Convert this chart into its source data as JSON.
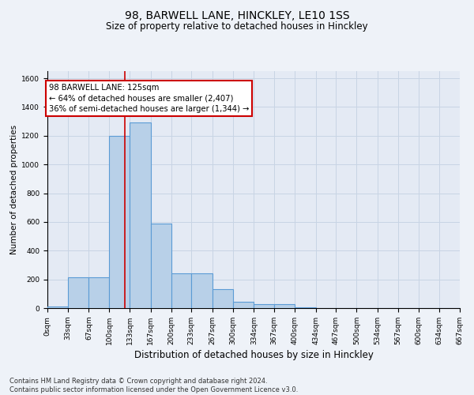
{
  "title1": "98, BARWELL LANE, HINCKLEY, LE10 1SS",
  "title2": "Size of property relative to detached houses in Hinckley",
  "xlabel": "Distribution of detached houses by size in Hinckley",
  "ylabel": "Number of detached properties",
  "footnote": "Contains HM Land Registry data © Crown copyright and database right 2024.\nContains public sector information licensed under the Open Government Licence v3.0.",
  "bin_edges": [
    0,
    33,
    67,
    100,
    133,
    167,
    200,
    233,
    267,
    300,
    334,
    367,
    400,
    434,
    467,
    500,
    534,
    567,
    600,
    634,
    667
  ],
  "bar_heights": [
    10,
    215,
    215,
    1200,
    1290,
    590,
    240,
    240,
    130,
    45,
    25,
    25,
    5,
    0,
    0,
    0,
    0,
    0,
    0,
    0
  ],
  "bar_color": "#b8d0e8",
  "bar_edge_color": "#5b9bd5",
  "grid_color": "#c8d4e4",
  "vline_x": 125,
  "vline_color": "#cc0000",
  "annotation_text_line1": "98 BARWELL LANE: 125sqm",
  "annotation_text_line2": "← 64% of detached houses are smaller (2,407)",
  "annotation_text_line3": "36% of semi-detached houses are larger (1,344) →",
  "ylim": [
    0,
    1650
  ],
  "yticks": [
    0,
    200,
    400,
    600,
    800,
    1000,
    1200,
    1400,
    1600
  ],
  "xlim": [
    0,
    667
  ],
  "bg_color": "#eef2f8",
  "plot_bg_color": "#e4eaf4",
  "title1_fontsize": 10,
  "title2_fontsize": 8.5,
  "ylabel_fontsize": 7.5,
  "xlabel_fontsize": 8.5,
  "tick_fontsize": 6.5,
  "footnote_fontsize": 6
}
